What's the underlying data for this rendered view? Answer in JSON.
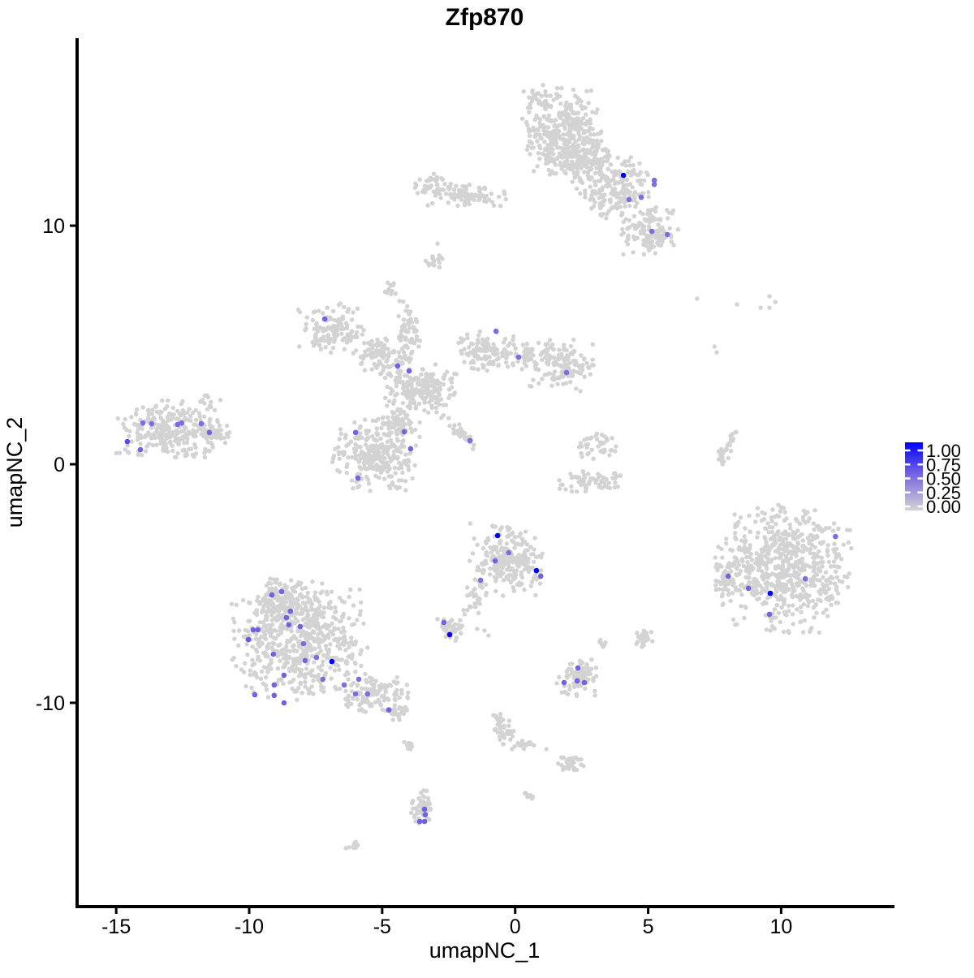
{
  "title": "Zfp870",
  "axes": {
    "x": {
      "label": "umapNC_1",
      "ticks": [
        -15,
        -10,
        -5,
        0,
        5,
        10
      ]
    },
    "y": {
      "label": "umapNC_2",
      "ticks": [
        10,
        0,
        -10
      ]
    }
  },
  "legend": {
    "stops": [
      "1.00",
      "0.75",
      "0.50",
      "0.25",
      "0.00"
    ],
    "high_color": "#0000FF",
    "mid_color": "#7E6CE0",
    "low_color": "#D3D3D3"
  },
  "chart_data": {
    "type": "scatter",
    "title": "Zfp870",
    "xlabel": "umapNC_1",
    "ylabel": "umapNC_2",
    "xlim": [
      -16.47,
      14.26
    ],
    "ylim": [
      -18.54,
      17.86
    ],
    "grid": false,
    "legend_position": "right",
    "point_color_low": "#D3D3D3",
    "point_color_mid": "#7E6CE0",
    "point_color_high": "#0000FF",
    "cluster_format": "cx,cy,rx,ry,n,rot_deg(optional) in umap data units; gaussian blob of n lightgrey cells",
    "background_clusters": [
      [
        1.7,
        13.8,
        1.45,
        2.0,
        330
      ],
      [
        2.8,
        12.95,
        0.95,
        1.2,
        110
      ],
      [
        3.7,
        11.6,
        1.4,
        1.4,
        200
      ],
      [
        5.05,
        9.8,
        1.25,
        1.05,
        130
      ],
      [
        -1.8,
        11.3,
        1.7,
        0.5,
        85
      ],
      [
        -3.1,
        11.72,
        0.7,
        0.55,
        40
      ],
      [
        0.8,
        15.4,
        0.62,
        0.5,
        22
      ],
      [
        2.2,
        15.0,
        0.5,
        0.45,
        15
      ],
      [
        -3.0,
        8.6,
        0.45,
        0.4,
        18
      ],
      [
        -4.66,
        7.3,
        0.4,
        0.35,
        14
      ],
      [
        -6.9,
        5.7,
        1.4,
        1.05,
        130
      ],
      [
        -5.0,
        4.5,
        1.1,
        0.85,
        90
      ],
      [
        -4.0,
        5.5,
        0.5,
        1.35,
        65
      ],
      [
        -3.5,
        3.1,
        1.4,
        1.2,
        210
      ],
      [
        -1.06,
        4.66,
        1.1,
        0.95,
        110
      ],
      [
        1.7,
        4.15,
        1.3,
        1.1,
        140
      ],
      [
        -5.2,
        0.4,
        1.7,
        1.55,
        270
      ],
      [
        -2.0,
        1.3,
        0.95,
        0.22,
        40,
        -45
      ],
      [
        -4.3,
        1.8,
        0.75,
        0.6,
        60
      ],
      [
        0.4,
        4.5,
        0.75,
        0.55,
        40
      ],
      [
        -12.95,
        1.45,
        2.05,
        1.3,
        270
      ],
      [
        -11.4,
        1.3,
        0.9,
        0.4,
        40
      ],
      [
        -11.6,
        2.7,
        0.25,
        0.35,
        10
      ],
      [
        -0.3,
        -4.0,
        1.5,
        1.55,
        230
      ],
      [
        -1.5,
        -5.55,
        0.4,
        0.85,
        30,
        -18
      ],
      [
        -2.5,
        -6.9,
        0.68,
        0.55,
        45
      ],
      [
        2.9,
        -0.7,
        1.4,
        0.45,
        65
      ],
      [
        3.0,
        0.75,
        0.85,
        0.75,
        40
      ],
      [
        10.1,
        -4.35,
        2.6,
        2.75,
        680
      ],
      [
        7.9,
        -4.8,
        0.48,
        0.75,
        35
      ],
      [
        -8.1,
        -7.4,
        2.6,
        2.55,
        600
      ],
      [
        -8.7,
        -5.7,
        1.05,
        0.95,
        140
      ],
      [
        -5.3,
        -9.6,
        1.4,
        0.85,
        110
      ],
      [
        -4.35,
        -10.4,
        0.55,
        0.35,
        25
      ],
      [
        2.36,
        -8.9,
        0.8,
        0.82,
        90
      ],
      [
        -0.45,
        -11.2,
        0.4,
        0.95,
        45,
        20
      ],
      [
        0.47,
        -11.7,
        0.38,
        0.25,
        14
      ],
      [
        2.08,
        -12.55,
        0.55,
        0.38,
        35
      ],
      [
        -3.5,
        -14.4,
        0.42,
        1.0,
        45
      ],
      [
        -6.1,
        -16.0,
        0.3,
        0.25,
        10
      ],
      [
        7.9,
        0.5,
        0.25,
        0.95,
        30,
        -24
      ],
      [
        4.8,
        -7.3,
        0.42,
        0.4,
        30
      ],
      [
        3.3,
        -7.55,
        0.28,
        0.22,
        12
      ],
      [
        -4.0,
        -11.8,
        0.22,
        0.2,
        10
      ],
      [
        0.44,
        -13.9,
        0.25,
        0.18,
        8
      ]
    ],
    "singleton_points": [
      [
        6.84,
        6.94
      ],
      [
        8.34,
        6.7
      ],
      [
        9.23,
        6.56
      ],
      [
        9.56,
        7.04
      ],
      [
        9.78,
        6.8
      ],
      [
        9.56,
        6.56
      ],
      [
        7.49,
        4.93
      ],
      [
        7.58,
        4.69
      ],
      [
        -1.43,
        -6.9
      ],
      [
        -1.15,
        -6.97
      ],
      [
        -1.0,
        -7.18
      ],
      [
        -2.92,
        9.25
      ],
      [
        1.17,
        -11.94
      ]
    ],
    "expressing_cell_format": "x,y,expression_value(0-1)",
    "expressing_cells": [
      [
        4.07,
        12.11,
        1.0
      ],
      [
        5.23,
        11.9,
        0.5
      ],
      [
        5.23,
        11.73,
        0.5
      ],
      [
        4.28,
        11.09,
        0.5
      ],
      [
        4.74,
        11.19,
        0.5
      ],
      [
        5.14,
        9.76,
        0.5
      ],
      [
        5.72,
        9.63,
        0.5
      ],
      [
        -7.16,
        6.09,
        0.55
      ],
      [
        -4.42,
        4.12,
        0.55
      ],
      [
        -3.99,
        3.91,
        0.55
      ],
      [
        -0.72,
        5.58,
        0.5
      ],
      [
        0.13,
        4.49,
        0.5
      ],
      [
        1.93,
        3.84,
        0.5
      ],
      [
        -6.0,
        1.33,
        0.55
      ],
      [
        -4.17,
        1.36,
        0.55
      ],
      [
        -3.93,
        0.65,
        0.55
      ],
      [
        -1.7,
        0.99,
        0.5
      ],
      [
        -5.91,
        -0.58,
        0.55
      ],
      [
        -14.0,
        1.73,
        0.5
      ],
      [
        -13.67,
        1.7,
        0.5
      ],
      [
        -12.69,
        1.67,
        0.5
      ],
      [
        -12.54,
        1.73,
        0.5
      ],
      [
        -11.8,
        1.7,
        0.5
      ],
      [
        -11.5,
        1.33,
        0.55
      ],
      [
        -14.58,
        0.95,
        0.65
      ],
      [
        -14.09,
        0.61,
        0.55
      ],
      [
        -0.66,
        -2.99,
        1.0
      ],
      [
        -0.24,
        -3.71,
        0.5
      ],
      [
        -0.75,
        -4.05,
        0.55
      ],
      [
        0.8,
        -4.46,
        1.0
      ],
      [
        0.96,
        -4.69,
        0.55
      ],
      [
        -1.3,
        -4.86,
        0.5
      ],
      [
        -2.68,
        -6.63,
        0.55
      ],
      [
        -2.46,
        -7.14,
        1.0
      ],
      [
        8.01,
        -4.69,
        0.55
      ],
      [
        8.77,
        -5.2,
        0.55
      ],
      [
        9.59,
        -5.41,
        1.0
      ],
      [
        10.91,
        -4.8,
        0.5
      ],
      [
        12.04,
        -3.03,
        0.5
      ],
      [
        9.56,
        -6.29,
        0.55
      ],
      [
        -9.15,
        -5.48,
        0.55
      ],
      [
        -8.78,
        -5.34,
        0.55
      ],
      [
        -8.45,
        -6.16,
        0.55
      ],
      [
        -8.6,
        -6.43,
        0.55
      ],
      [
        -8.51,
        -6.73,
        0.55
      ],
      [
        -8.08,
        -6.8,
        0.55
      ],
      [
        -9.85,
        -6.94,
        0.55
      ],
      [
        -9.67,
        -6.94,
        0.55
      ],
      [
        -10.03,
        -7.35,
        0.6
      ],
      [
        -7.96,
        -7.52,
        0.5
      ],
      [
        -9.09,
        -7.96,
        0.55
      ],
      [
        -7.9,
        -8.23,
        0.55
      ],
      [
        -7.47,
        -8.1,
        0.5
      ],
      [
        -6.89,
        -8.27,
        1.0
      ],
      [
        -7.23,
        -9.01,
        0.5
      ],
      [
        -8.69,
        -8.84,
        0.55
      ],
      [
        -9.06,
        -9.25,
        0.55
      ],
      [
        -6.43,
        -9.25,
        0.5
      ],
      [
        -9.79,
        -9.66,
        0.55
      ],
      [
        -5.88,
        -9.01,
        0.5
      ],
      [
        -6.0,
        -9.63,
        0.5
      ],
      [
        -5.55,
        -9.63,
        0.5
      ],
      [
        -9.06,
        -9.69,
        0.55
      ],
      [
        -8.69,
        -10.0,
        0.55
      ],
      [
        -4.75,
        -10.3,
        0.55
      ],
      [
        2.36,
        -8.54,
        0.55
      ],
      [
        1.84,
        -9.15,
        0.55
      ],
      [
        2.33,
        -9.08,
        0.55
      ],
      [
        2.6,
        -9.15,
        0.55
      ],
      [
        -3.41,
        -14.46,
        0.55
      ],
      [
        -3.38,
        -14.69,
        0.55
      ],
      [
        -3.59,
        -14.97,
        0.55
      ],
      [
        -3.41,
        -14.97,
        0.55
      ]
    ]
  }
}
